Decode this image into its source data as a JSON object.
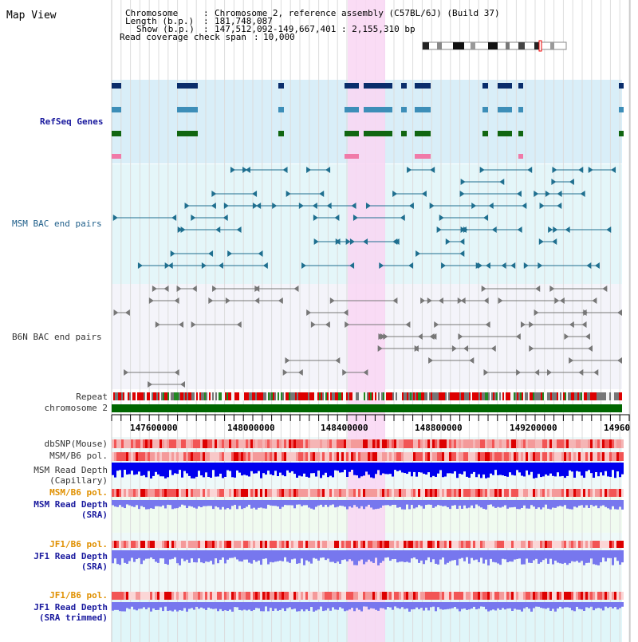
{
  "title": "Map View",
  "header": {
    "chromosome_key": "Chromosome",
    "chromosome_value": "Chromosome 2, reference assembly (C57BL/6J) (Build 37)",
    "length_key": "Length (b.p.)",
    "length_value": "181,748,087",
    "show_key": "Show (b.p.)",
    "show_value": "147,512,092-149,667,401 : 2,155,310 bp",
    "coverage_key": "Read coverage check span",
    "coverage_value": "10,000"
  },
  "tracks": {
    "refseq": "RefSeq Genes",
    "msm_bac": "MSM BAC end pairs",
    "b6n_bac": "B6N BAC end pairs",
    "repeat": "Repeat",
    "chromosome": "chromosome 2",
    "dbsnp": "dbSNP(Mouse)",
    "msm_b6_pol_1": "MSM/B6 pol.",
    "msm_read_depth_cap_1": "MSM Read Depth",
    "msm_read_depth_cap_2": "(Capillary)",
    "msm_b6_pol_2": "MSM/B6 pol.",
    "msm_read_depth_sra_1": "MSM Read Depth",
    "msm_read_depth_sra_2": "(SRA)",
    "jf1_b6_pol_1": "JF1/B6 pol.",
    "jf1_read_depth_sra_1": "JF1 Read Depth",
    "jf1_read_depth_sra_2": "(SRA)",
    "jf1_b6_pol_2": "JF1/B6 pol.",
    "jf1_read_depth_trim_1": "JF1 Read Depth",
    "jf1_read_depth_trim_2": "(SRA trimmed)"
  },
  "axis": {
    "ticks": [
      "147600000",
      "148000000",
      "148400000",
      "148800000",
      "149200000",
      "14960"
    ]
  },
  "colors": {
    "highlight": "#f9d6f3",
    "refseq_bg": "#d9eef8",
    "msm_bg": "#e4f6f9",
    "b6n_bg": "#f4f4fa",
    "chromosome_bar": "#006600",
    "depth_dark": "#0000ee",
    "depth_light": "#7777ee",
    "pol_red": "#ee1111"
  }
}
